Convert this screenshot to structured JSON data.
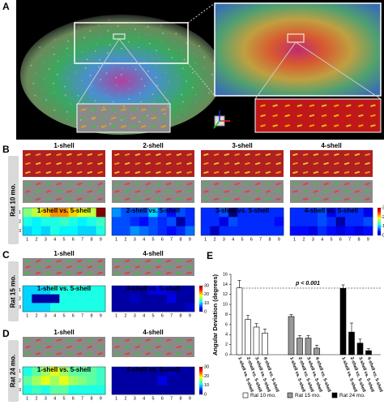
{
  "panel_a": "A",
  "rows": [
    {
      "panel": "B",
      "label": "Rat 10 mo.",
      "columns": [
        {
          "title": "1-shell",
          "comparison": "1-shell vs. 5-shell",
          "matrix": [
            [
              15,
              17,
              20,
              22,
              22,
              20,
              18,
              17,
              30
            ],
            [
              12,
              11,
              12,
              12,
              13,
              12,
              11,
              12,
              13
            ],
            [
              10,
              11,
              10,
              12,
              11,
              11,
              10,
              10,
              12
            ]
          ]
        },
        {
          "title": "2-shell",
          "comparison": "2-shell vs. 5-shell",
          "matrix": [
            [
              8,
              6,
              6,
              6,
              10,
              6,
              4,
              6,
              5
            ],
            [
              6,
              6,
              5,
              4,
              6,
              5,
              6,
              1,
              5
            ],
            [
              6,
              6,
              8,
              7,
              6,
              5,
              4,
              5,
              7
            ]
          ]
        },
        {
          "title": "3-shell",
          "comparison": "3-shell vs. 5-shell",
          "matrix": [
            [
              5,
              5,
              6,
              0,
              5,
              5,
              5,
              5,
              5
            ],
            [
              5,
              5,
              3,
              6,
              5,
              5,
              5,
              5,
              4
            ],
            [
              5,
              2,
              5,
              5,
              5,
              5,
              5,
              5,
              5
            ]
          ]
        },
        {
          "title": "4-shell",
          "comparison": "4-shell vs. 5-shell",
          "matrix": [
            [
              5,
              5,
              5,
              6,
              3,
              5,
              5,
              5,
              3
            ],
            [
              5,
              5,
              5,
              6,
              5,
              1,
              5,
              5,
              6
            ],
            [
              4,
              4,
              3,
              5,
              4,
              3,
              4,
              3,
              4
            ]
          ]
        }
      ]
    },
    {
      "panel": "C",
      "label": "Rat 15 mo.",
      "columns": [
        {
          "title": "1-shell",
          "comparison": "1-shell vs. 5-shell",
          "matrix": [
            [
              10,
              10,
              10,
              12,
              12,
              12,
              12,
              12,
              12
            ],
            [
              10,
              1,
              1,
              1,
              12,
              12,
              12,
              12,
              12
            ],
            [
              10,
              10,
              10,
              12,
              12,
              12,
              12,
              12,
              12
            ]
          ]
        },
        {
          "title": "4-shell",
          "comparison": "4-shell vs. 5-shell",
          "matrix": [
            [
              1,
              1,
              1,
              1,
              3,
              3,
              2,
              1,
              1
            ],
            [
              1,
              1,
              2,
              1,
              1,
              1,
              3,
              1,
              1
            ],
            [
              1,
              1,
              1,
              1,
              1,
              1,
              1,
              1,
              2
            ]
          ]
        }
      ]
    },
    {
      "panel": "D",
      "label": "Rat 24 mo.",
      "columns": [
        {
          "title": "1-shell",
          "comparison": "1-shell vs. 5-shell",
          "matrix": [
            [
              12,
              14,
              16,
              18,
              16,
              14,
              14,
              14,
              13
            ],
            [
              14,
              16,
              18,
              16,
              18,
              16,
              15,
              14,
              13
            ],
            [
              12,
              13,
              12,
              14,
              14,
              12,
              12,
              12,
              12
            ]
          ]
        },
        {
          "title": "4-shell",
          "comparison": "4-shell vs. 5-shell",
          "matrix": [
            [
              1,
              1,
              1,
              1,
              1,
              1,
              2,
              1,
              1
            ],
            [
              1,
              1,
              1,
              1,
              1,
              3,
              1,
              1,
              1
            ],
            [
              1,
              1,
              1,
              1,
              1,
              1,
              1,
              1,
              1
            ]
          ]
        }
      ]
    }
  ],
  "heatmap_cols": [
    1,
    2,
    3,
    4,
    5,
    6,
    7,
    8,
    9
  ],
  "heatmap_rows": [
    1,
    2,
    3
  ],
  "colorbar_lim": [
    0,
    30
  ],
  "colorbar_ticks": [
    0,
    10,
    20,
    30
  ],
  "chart_data": {
    "type": "bar",
    "panel": "E",
    "y_label": "Angular Deviation (degrees)",
    "annotation": "p < 0.001",
    "categories": [
      "1-shell vs. 5-shell",
      "2-shell vs. 5-shell",
      "3-shell vs. 5-shell",
      "4-shell vs. 5-shell"
    ],
    "series": [
      {
        "name": "Rat 10 mo.",
        "color": "#ffffff",
        "values": [
          13.3,
          7.0,
          5.5,
          4.3
        ],
        "errors": [
          1.5,
          0.8,
          0.7,
          0.8
        ]
      },
      {
        "name": "Rat 15 mo.",
        "color": "#999999",
        "values": [
          7.6,
          3.3,
          3.3,
          1.3
        ],
        "errors": [
          0.4,
          0.5,
          0.5,
          0.6
        ]
      },
      {
        "name": "Rat 24 mo.",
        "color": "#000000",
        "values": [
          13.2,
          4.5,
          2.3,
          0.8
        ],
        "errors": [
          0.7,
          1.8,
          0.8,
          0.4
        ]
      }
    ],
    "ylim": [
      0,
      16
    ],
    "yticks": [
      0,
      2,
      4,
      6,
      8,
      10,
      12,
      14,
      16
    ]
  }
}
